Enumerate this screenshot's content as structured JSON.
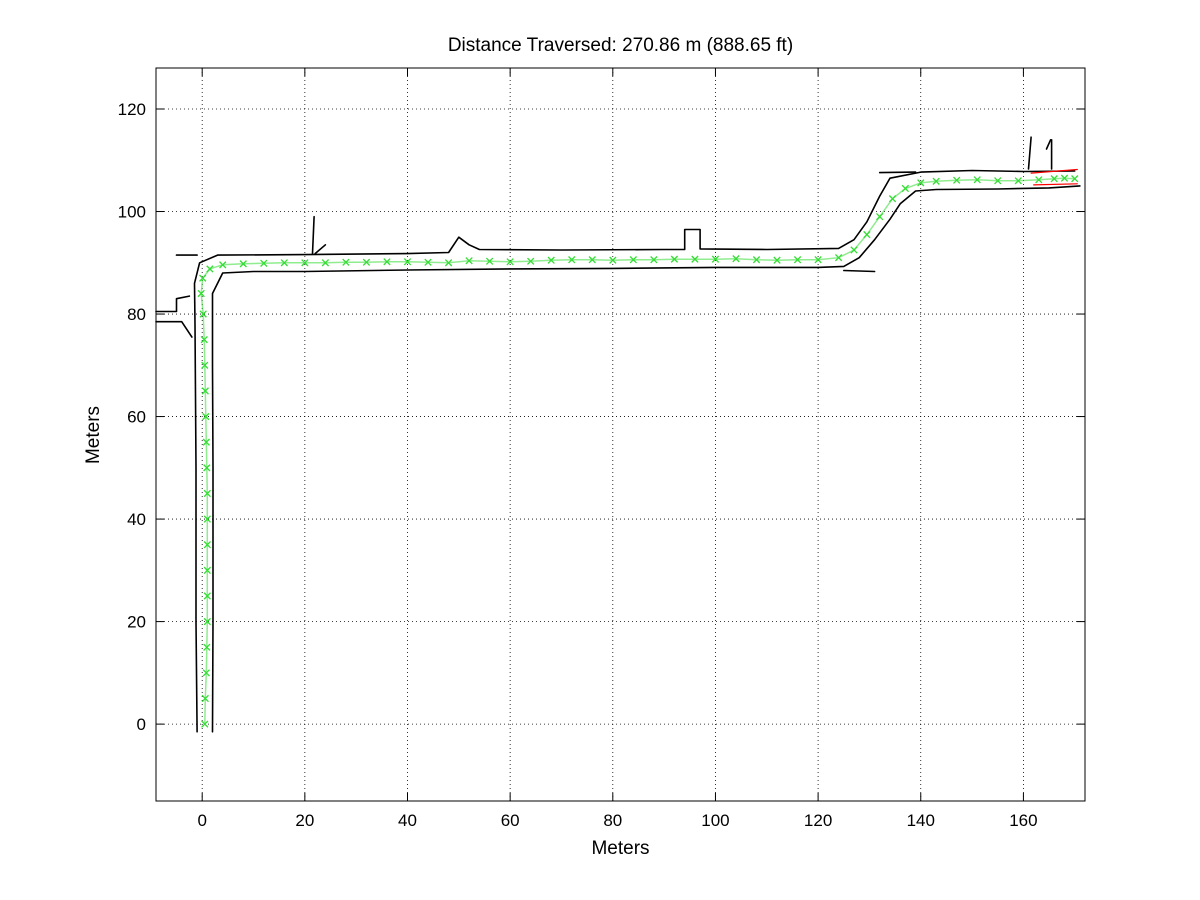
{
  "chart_data": {
    "type": "scatter",
    "title": "Distance Traversed: 270.86 m (888.65 ft)",
    "xlabel": "Meters",
    "ylabel": "Meters",
    "xlim": [
      -9,
      172
    ],
    "ylim": [
      -15,
      128
    ],
    "xticks": [
      0,
      20,
      40,
      60,
      80,
      100,
      120,
      140,
      160
    ],
    "yticks": [
      0,
      20,
      40,
      60,
      80,
      100,
      120
    ],
    "grid": true,
    "grid_style": "dotted",
    "colors": {
      "trajectory": "#33dd33",
      "map": "#000000",
      "highlight": "#ff0000"
    },
    "series": [
      {
        "marker": "x",
        "color": "#33dd33",
        "points": [
          [
            0.5,
            0
          ],
          [
            0.6,
            5
          ],
          [
            0.8,
            10
          ],
          [
            0.9,
            15
          ],
          [
            1.0,
            20
          ],
          [
            1.0,
            25
          ],
          [
            1.0,
            30
          ],
          [
            1.0,
            35
          ],
          [
            1.0,
            40
          ],
          [
            1.0,
            45
          ],
          [
            0.9,
            50
          ],
          [
            0.8,
            55
          ],
          [
            0.7,
            60
          ],
          [
            0.6,
            65
          ],
          [
            0.5,
            70
          ],
          [
            0.4,
            75
          ],
          [
            0.2,
            80
          ],
          [
            -0.2,
            84
          ],
          [
            0.1,
            87
          ],
          [
            1.5,
            88.8
          ],
          [
            4,
            89.6
          ],
          [
            8,
            89.8
          ],
          [
            12,
            89.9
          ],
          [
            16,
            90.0
          ],
          [
            20,
            90.0
          ],
          [
            24,
            90.0
          ],
          [
            28,
            90.1
          ],
          [
            32,
            90.1
          ],
          [
            36,
            90.2
          ],
          [
            40,
            90.2
          ],
          [
            44,
            90.1
          ],
          [
            48,
            90.0
          ],
          [
            52,
            90.4
          ],
          [
            56,
            90.3
          ],
          [
            60,
            90.2
          ],
          [
            64,
            90.3
          ],
          [
            68,
            90.5
          ],
          [
            72,
            90.6
          ],
          [
            76,
            90.6
          ],
          [
            80,
            90.5
          ],
          [
            84,
            90.6
          ],
          [
            88,
            90.6
          ],
          [
            92,
            90.7
          ],
          [
            96,
            90.7
          ],
          [
            100,
            90.7
          ],
          [
            104,
            90.8
          ],
          [
            108,
            90.6
          ],
          [
            112,
            90.5
          ],
          [
            116,
            90.6
          ],
          [
            120,
            90.6
          ],
          [
            124,
            91.0
          ],
          [
            127,
            92.5
          ],
          [
            129.5,
            95.5
          ],
          [
            132,
            99
          ],
          [
            134.5,
            102.5
          ],
          [
            137,
            104.5
          ],
          [
            140,
            105.6
          ],
          [
            143,
            105.9
          ],
          [
            147,
            106.1
          ],
          [
            151,
            106.2
          ],
          [
            155,
            106.0
          ],
          [
            159,
            106.0
          ],
          [
            163,
            106.2
          ],
          [
            166,
            106.4
          ],
          [
            168,
            106.5
          ],
          [
            170,
            106.4
          ]
        ]
      }
    ],
    "map_outline": [
      {
        "points": [
          [
            -1,
            -1.5
          ],
          [
            -1.2,
            20
          ],
          [
            -1.2,
            50
          ],
          [
            -1.4,
            78
          ],
          [
            -1.5,
            86
          ],
          [
            -0.5,
            90
          ],
          [
            3,
            91.5
          ],
          [
            20,
            91.6
          ],
          [
            40,
            91.8
          ],
          [
            48,
            92.0
          ],
          [
            50,
            95.0
          ],
          [
            52,
            93.5
          ],
          [
            54,
            92.6
          ],
          [
            70,
            92.5
          ],
          [
            90,
            92.6
          ],
          [
            94,
            92.6
          ],
          [
            94,
            96.5
          ],
          [
            97,
            96.5
          ],
          [
            97,
            92.7
          ],
          [
            110,
            92.6
          ],
          [
            124,
            92.8
          ],
          [
            127,
            94.5
          ],
          [
            129.5,
            98
          ],
          [
            132,
            103
          ],
          [
            134,
            106.5
          ],
          [
            140,
            107.7
          ],
          [
            150,
            108.0
          ],
          [
            160,
            107.8
          ],
          [
            170,
            107.9
          ]
        ]
      },
      {
        "points": [
          [
            2,
            -1.5
          ],
          [
            2.1,
            20
          ],
          [
            2.1,
            50
          ],
          [
            2.0,
            70
          ],
          [
            2.0,
            84
          ],
          [
            4,
            88.0
          ],
          [
            10,
            88.3
          ],
          [
            20,
            88.3
          ],
          [
            40,
            88.6
          ],
          [
            60,
            88.8
          ],
          [
            80,
            88.9
          ],
          [
            100,
            89.1
          ],
          [
            120,
            89.1
          ],
          [
            125,
            89.3
          ],
          [
            128,
            91.0
          ],
          [
            131,
            94.5
          ],
          [
            134,
            98.5
          ],
          [
            136,
            101.5
          ],
          [
            139,
            104.0
          ],
          [
            143,
            104.3
          ],
          [
            155,
            104.4
          ],
          [
            165,
            104.6
          ],
          [
            171,
            105.0
          ]
        ]
      },
      {
        "points": [
          [
            -5,
            91.5
          ],
          [
            -1,
            91.5
          ]
        ]
      },
      {
        "points": [
          [
            -9,
            80.5
          ],
          [
            -5,
            80.5
          ],
          [
            -5,
            83
          ],
          [
            -2.5,
            83.5
          ]
        ]
      },
      {
        "points": [
          [
            -9,
            78.5
          ],
          [
            -4,
            78.5
          ],
          [
            -2,
            75.5
          ]
        ]
      },
      {
        "points": [
          [
            21.5,
            91.8
          ],
          [
            21.8,
            99
          ]
        ]
      },
      {
        "points": [
          [
            22,
            91.8
          ],
          [
            24,
            93.5
          ]
        ]
      },
      {
        "points": [
          [
            125,
            88.5
          ],
          [
            131,
            88.3
          ]
        ]
      },
      {
        "points": [
          [
            132,
            107.6
          ],
          [
            139,
            107.7
          ]
        ]
      },
      {
        "points": [
          [
            161,
            108.3
          ],
          [
            161.5,
            114.5
          ]
        ]
      },
      {
        "points": [
          [
            165.5,
            108.3
          ],
          [
            165.5,
            114
          ]
        ]
      },
      {
        "points": [
          [
            165.3,
            114
          ],
          [
            164.5,
            112.2
          ]
        ]
      }
    ],
    "map_highlight": [
      {
        "points": [
          [
            161.5,
            107.5
          ],
          [
            170.5,
            108.2
          ]
        ]
      },
      {
        "points": [
          [
            162.0,
            105.2
          ],
          [
            170.5,
            105.4
          ]
        ]
      }
    ]
  }
}
